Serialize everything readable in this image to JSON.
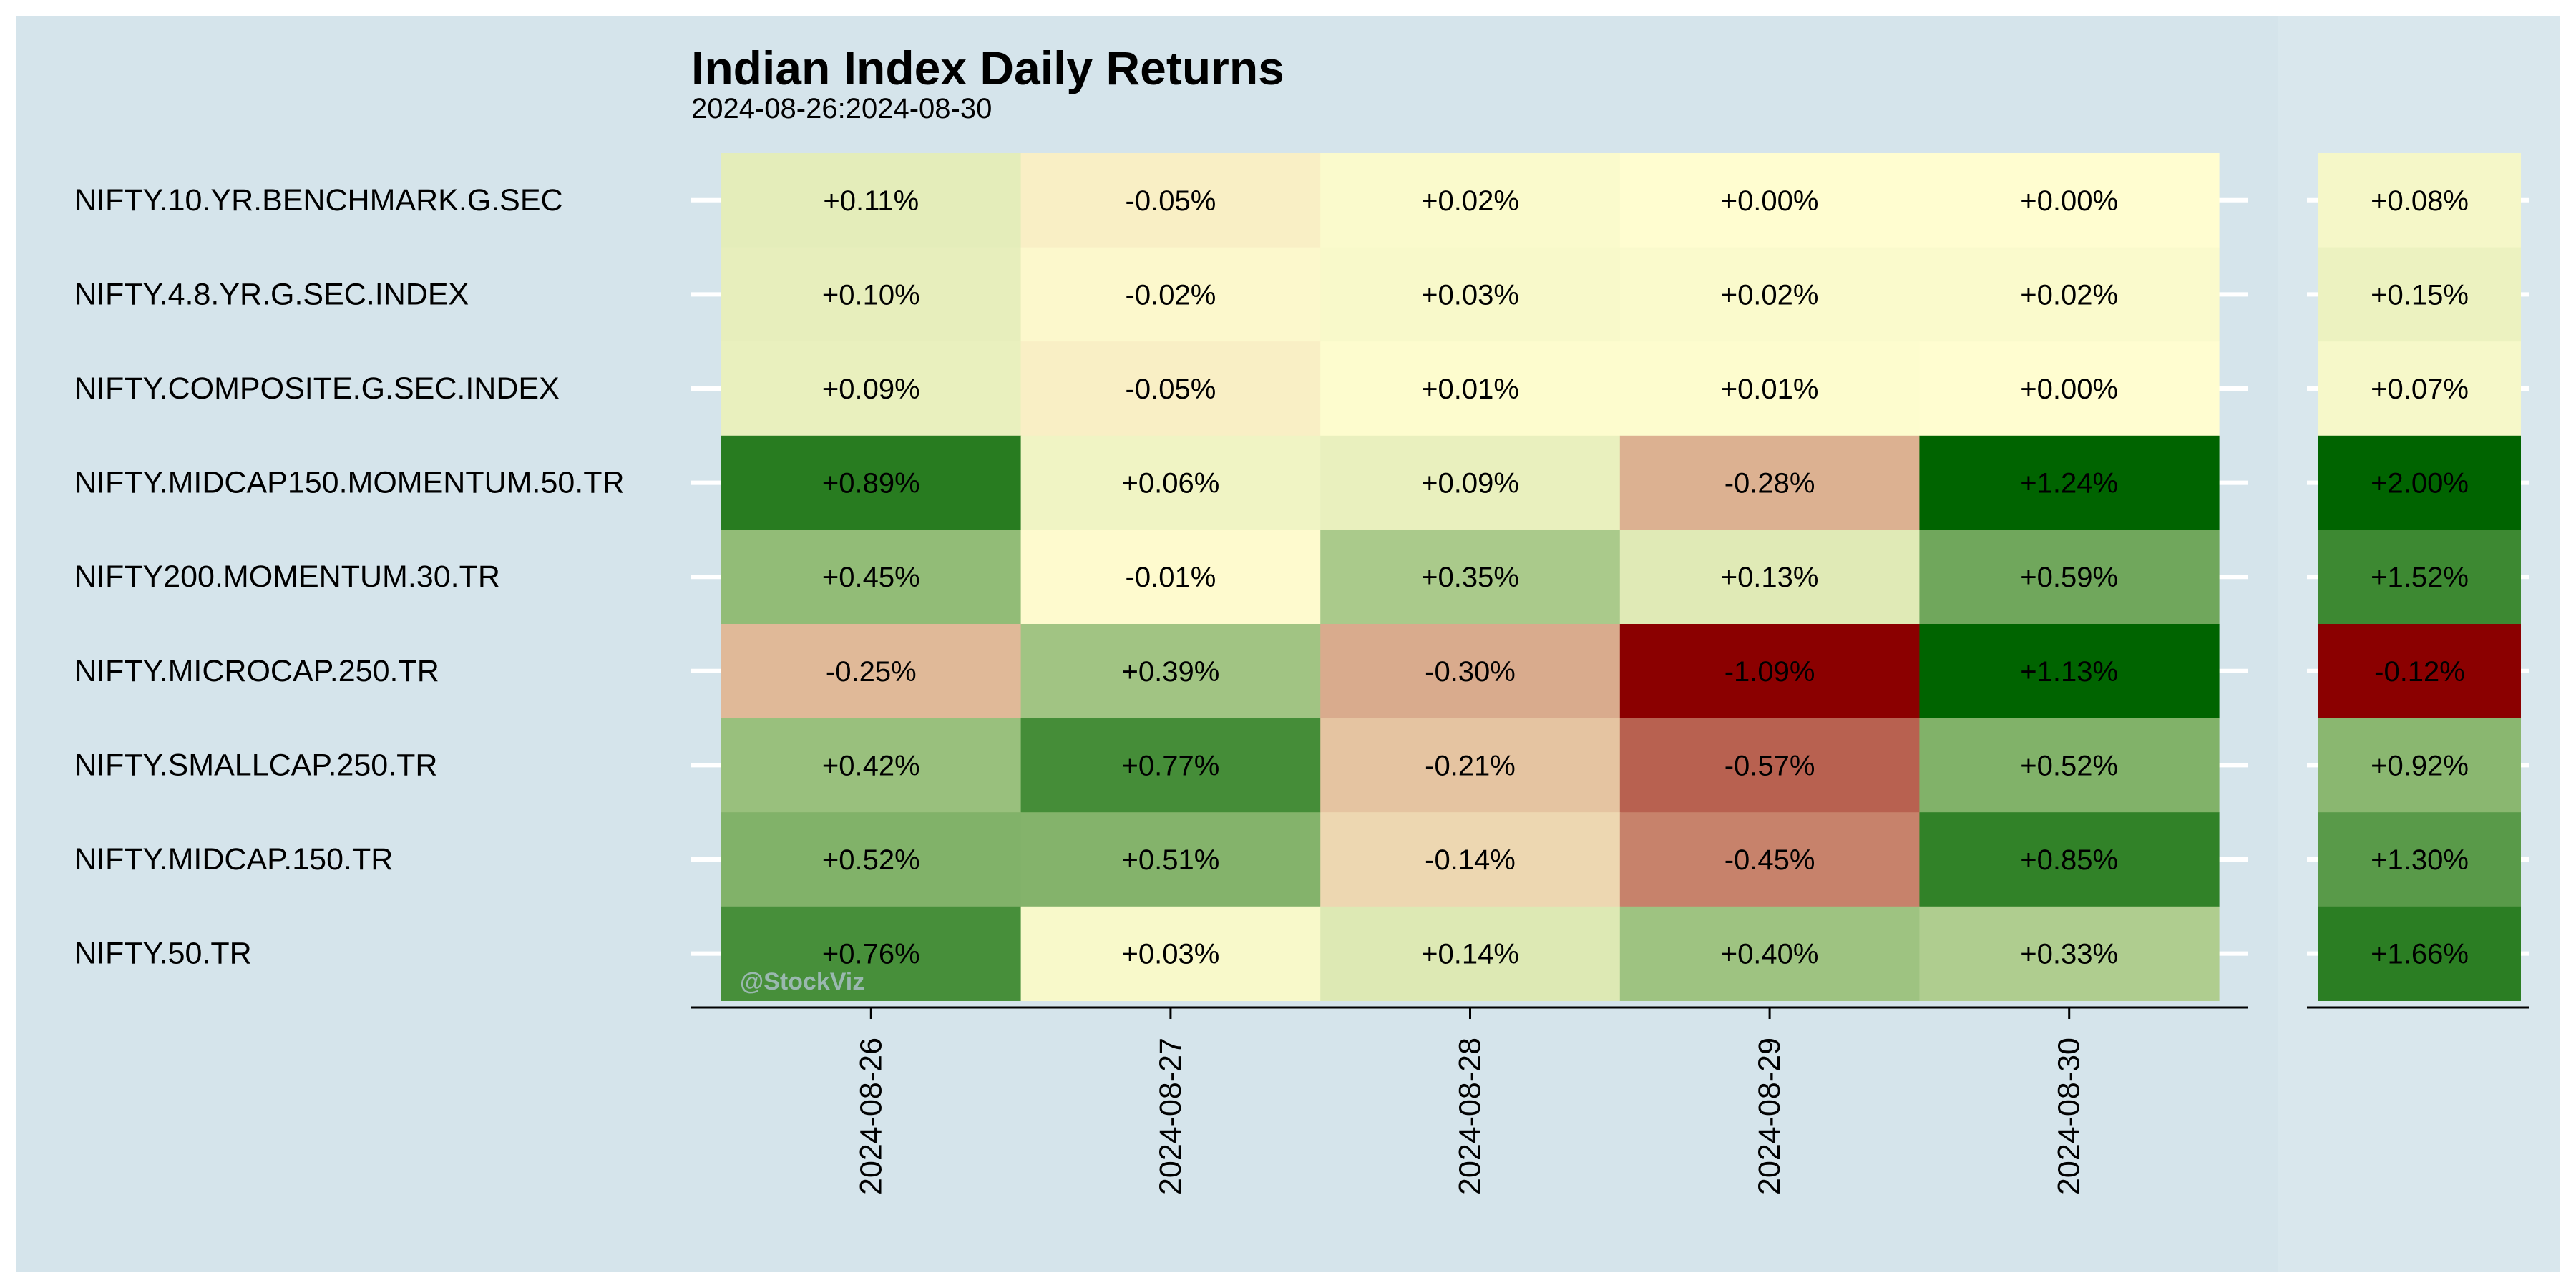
{
  "chart_data": {
    "type": "heatmap",
    "title": "Indian Index Daily Returns",
    "subtitle": "2024-08-26:2024-08-30",
    "watermark": "@StockViz",
    "x": [
      "2024-08-26",
      "2024-08-27",
      "2024-08-28",
      "2024-08-29",
      "2024-08-30"
    ],
    "y": [
      "NIFTY.10.YR.BENCHMARK.G.SEC",
      "NIFTY.4.8.YR.G.SEC.INDEX",
      "NIFTY.COMPOSITE.G.SEC.INDEX",
      "NIFTY.MIDCAP150.MOMENTUM.50.TR",
      "NIFTY200.MOMENTUM.30.TR",
      "NIFTY.MICROCAP.250.TR",
      "NIFTY.SMALLCAP.250.TR",
      "NIFTY.MIDCAP.150.TR",
      "NIFTY.50.TR"
    ],
    "values": [
      [
        0.11,
        -0.05,
        0.02,
        0.0,
        0.0
      ],
      [
        0.1,
        -0.02,
        0.03,
        0.02,
        0.02
      ],
      [
        0.09,
        -0.05,
        0.01,
        0.01,
        0.0
      ],
      [
        0.89,
        0.06,
        0.09,
        -0.28,
        1.24
      ],
      [
        0.45,
        -0.01,
        0.35,
        0.13,
        0.59
      ],
      [
        -0.25,
        0.39,
        -0.3,
        -1.09,
        1.13
      ],
      [
        0.42,
        0.77,
        -0.21,
        -0.57,
        0.52
      ],
      [
        0.52,
        0.51,
        -0.14,
        -0.45,
        0.85
      ],
      [
        0.76,
        0.03,
        0.14,
        0.4,
        0.33
      ]
    ],
    "labels": [
      [
        "+0.11%",
        "-0.05%",
        "+0.02%",
        "+0.00%",
        "+0.00%"
      ],
      [
        "+0.10%",
        "-0.02%",
        "+0.03%",
        "+0.02%",
        "+0.02%"
      ],
      [
        "+0.09%",
        "-0.05%",
        "+0.01%",
        "+0.01%",
        "+0.00%"
      ],
      [
        "+0.89%",
        "+0.06%",
        "+0.09%",
        "-0.28%",
        "+1.24%"
      ],
      [
        "+0.45%",
        "-0.01%",
        "+0.35%",
        "+0.13%",
        "+0.59%"
      ],
      [
        "-0.25%",
        "+0.39%",
        "-0.30%",
        "-1.09%",
        "+1.13%"
      ],
      [
        "+0.42%",
        "+0.77%",
        "-0.21%",
        "-0.57%",
        "+0.52%"
      ],
      [
        "+0.52%",
        "+0.51%",
        "-0.14%",
        "-0.45%",
        "+0.85%"
      ],
      [
        "+0.76%",
        "+0.03%",
        "+0.14%",
        "+0.40%",
        "+0.33%"
      ]
    ],
    "cumulative": [
      0.08,
      0.15,
      0.07,
      2.0,
      1.52,
      -0.12,
      0.92,
      1.3,
      1.66
    ],
    "cumulative_labels": [
      "+0.08%",
      "+0.15%",
      "+0.07%",
      "+2.00%",
      "+1.52%",
      "-0.12%",
      "+0.92%",
      "+1.30%",
      "+1.66%"
    ],
    "colors": {
      "negative_max": "#8b0000",
      "neutral": "#fffdd0",
      "positive_max": "#006400",
      "background": "#d5e4eb",
      "gridline": "#ffffff",
      "text": "#000000",
      "watermark": "#a9bfc4"
    },
    "grid": true,
    "legend": "none"
  }
}
